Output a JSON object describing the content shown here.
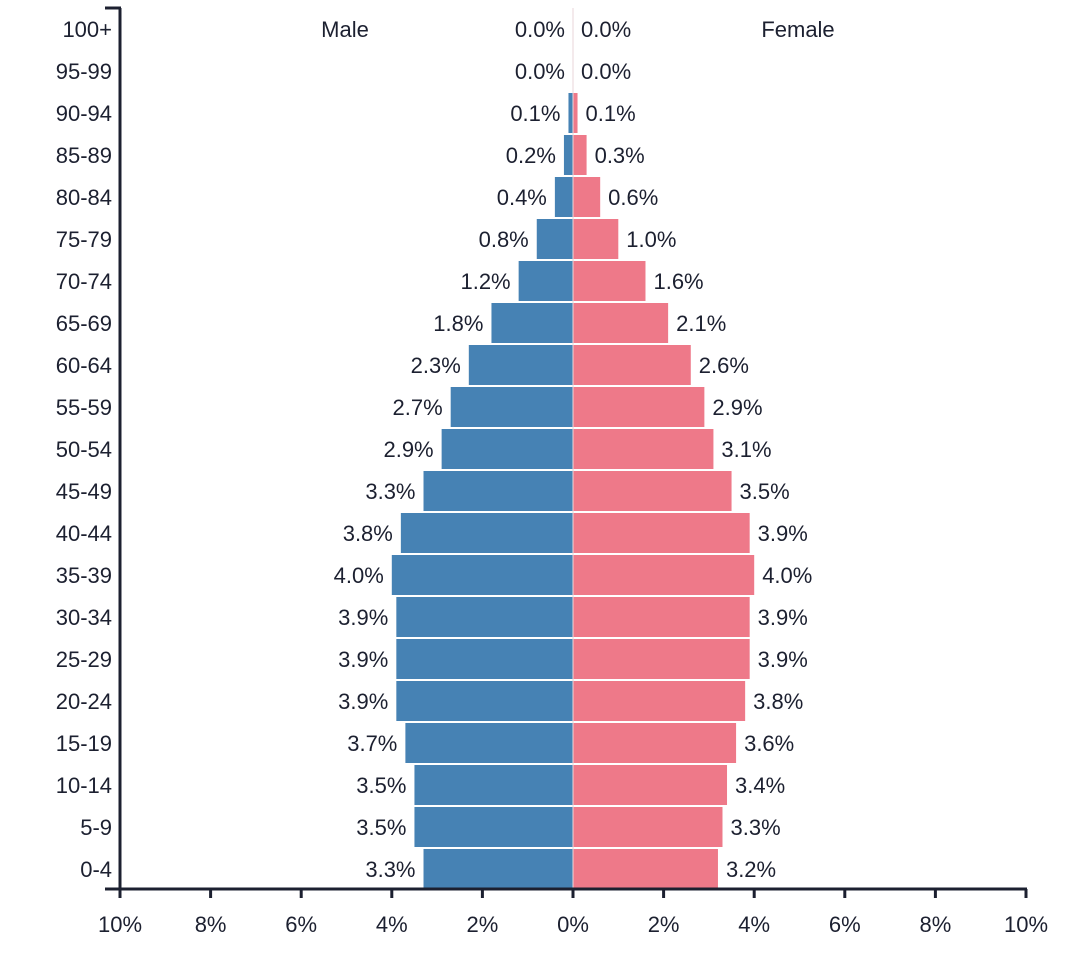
{
  "chart_data": {
    "type": "bar",
    "subtype": "population-pyramid",
    "categories": [
      "100+",
      "95-99",
      "90-94",
      "85-89",
      "80-84",
      "75-79",
      "70-74",
      "65-69",
      "60-64",
      "55-59",
      "50-54",
      "45-49",
      "40-44",
      "35-39",
      "30-34",
      "25-29",
      "20-24",
      "15-19",
      "10-14",
      "5-9",
      "0-4"
    ],
    "series": [
      {
        "name": "Male",
        "color": "#4682b4",
        "side": "left",
        "values": [
          0.0,
          0.0,
          0.1,
          0.2,
          0.4,
          0.8,
          1.2,
          1.8,
          2.3,
          2.7,
          2.9,
          3.3,
          3.8,
          4.0,
          3.9,
          3.9,
          3.9,
          3.7,
          3.5,
          3.5,
          3.3
        ]
      },
      {
        "name": "Female",
        "color": "#ee7989",
        "side": "right",
        "values": [
          0.0,
          0.0,
          0.1,
          0.3,
          0.6,
          1.0,
          1.6,
          2.1,
          2.6,
          2.9,
          3.1,
          3.5,
          3.9,
          4.0,
          3.9,
          3.9,
          3.8,
          3.6,
          3.4,
          3.3,
          3.2
        ]
      }
    ],
    "xlim": [
      -10,
      10
    ],
    "xticks": [
      "10%",
      "8%",
      "6%",
      "4%",
      "2%",
      "0%",
      "2%",
      "4%",
      "6%",
      "8%",
      "10%"
    ],
    "xlabel": "",
    "ylabel": "",
    "title": "",
    "grid": false,
    "legend": "top labels"
  }
}
